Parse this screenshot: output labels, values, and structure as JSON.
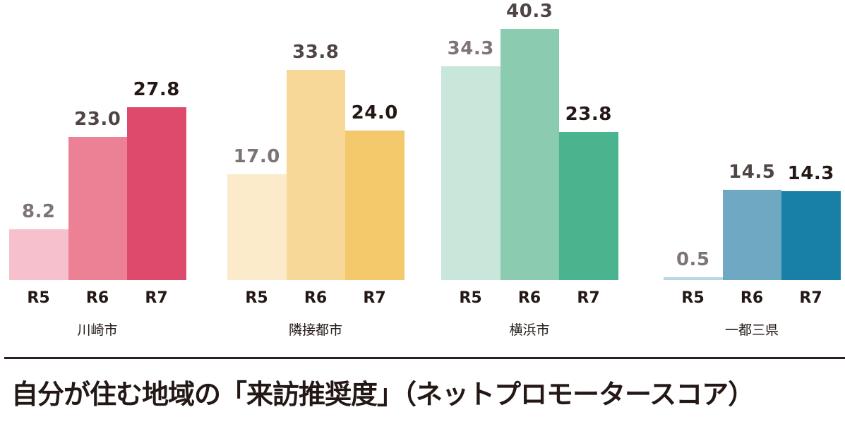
{
  "chart_data": {
    "type": "bar",
    "title": "自分が住む地域の「来訪推奨度」（ネットプロモータースコア）",
    "xlabel": "",
    "ylabel": "",
    "ylim": [
      0,
      42
    ],
    "grid": false,
    "legend": "none",
    "categories": [
      "川崎市",
      "隣接都市",
      "横浜市",
      "一都三県"
    ],
    "sub_categories": [
      "R5",
      "R6",
      "R7"
    ],
    "series": [
      {
        "name": "R5",
        "values": [
          8.2,
          17.0,
          34.3,
          0.5
        ]
      },
      {
        "name": "R6",
        "values": [
          23.0,
          33.8,
          40.3,
          14.5
        ]
      },
      {
        "name": "R7",
        "values": [
          27.8,
          24.0,
          23.8,
          14.3
        ]
      }
    ]
  },
  "groups": [
    {
      "label": "川崎市",
      "bars": [
        {
          "year": "R5",
          "value": "8.2",
          "num": 8.2,
          "color": "#f7c0cd"
        },
        {
          "year": "R6",
          "value": "23.0",
          "num": 23.0,
          "color": "#ec8196"
        },
        {
          "year": "R7",
          "value": "27.8",
          "num": 27.8,
          "color": "#dd4a6b"
        }
      ]
    },
    {
      "label": "隣接都市",
      "bars": [
        {
          "year": "R5",
          "value": "17.0",
          "num": 17.0,
          "color": "#fbebcb"
        },
        {
          "year": "R6",
          "value": "33.8",
          "num": 33.8,
          "color": "#f8d898"
        },
        {
          "year": "R7",
          "value": "24.0",
          "num": 24.0,
          "color": "#f4c96b"
        }
      ]
    },
    {
      "label": "横浜市",
      "bars": [
        {
          "year": "R5",
          "value": "34.3",
          "num": 34.3,
          "color": "#c8e6d9"
        },
        {
          "year": "R6",
          "value": "40.3",
          "num": 40.3,
          "color": "#8bccb1"
        },
        {
          "year": "R7",
          "value": "23.8",
          "num": 23.8,
          "color": "#49b48e"
        }
      ]
    },
    {
      "label": "一都三県",
      "bars": [
        {
          "year": "R5",
          "value": "0.5",
          "num": 0.5,
          "color": "#b5d8e3"
        },
        {
          "year": "R6",
          "value": "14.5",
          "num": 14.5,
          "color": "#6ea8c2"
        },
        {
          "year": "R7",
          "value": "14.3",
          "num": 14.3,
          "color": "#1880a6"
        }
      ]
    }
  ],
  "label_colors": {
    "R5": "#7d7573",
    "R6": "#4e4544",
    "R7": "#231815"
  },
  "footer": {
    "title": "自分が住む地域の「来訪推奨度」（ネットプロモータースコア）"
  }
}
